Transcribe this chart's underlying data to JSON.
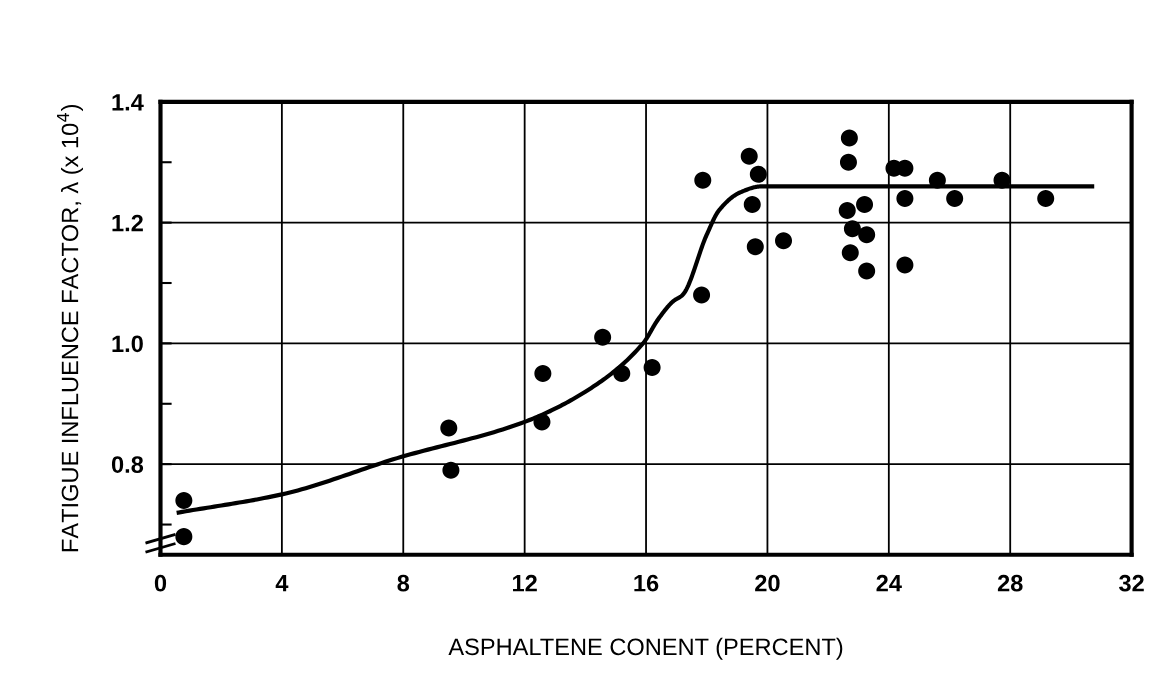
{
  "chart_data": {
    "type": "scatter",
    "xlabel": "ASPHALTENE CONENT (PERCENT)",
    "ylabel": "FATIGUE INFLUENCE FACTOR, λ (x 10$^{4}$)",
    "xlim": [
      0,
      32
    ],
    "ylim": [
      0.65,
      1.4
    ],
    "xticks": [
      0,
      4,
      8,
      12,
      16,
      20,
      24,
      28,
      32
    ],
    "yticks": [
      {
        "value": 0.7,
        "label": null
      },
      0.8,
      {
        "value": 0.9,
        "label": null
      },
      {
        "value": 1.0,
        "label": "1.0"
      },
      {
        "value": 1.1,
        "label": null
      },
      1.2,
      {
        "value": 1.3,
        "label": null
      },
      1.4
    ],
    "grid": true,
    "marker": "circle",
    "series": [
      {
        "color": "#000000",
        "x": [
          0.77,
          0.77,
          9.5,
          9.57,
          12.6,
          12.57,
          14.57,
          15.2,
          16.2,
          17.87,
          17.83,
          19.4,
          19.7,
          19.5,
          19.6,
          20.53,
          22.7,
          22.67,
          22.63,
          22.8,
          23.27,
          23.2,
          22.73,
          23.27,
          24.17,
          24.53,
          24.53,
          24.53,
          25.6,
          26.17,
          27.73,
          29.17
        ],
        "values": [
          0.74,
          0.68,
          0.86,
          0.79,
          0.95,
          0.87,
          1.01,
          0.95,
          0.96,
          1.27,
          1.08,
          1.31,
          1.28,
          1.23,
          1.16,
          1.17,
          1.34,
          1.3,
          1.22,
          1.19,
          1.18,
          1.23,
          1.15,
          1.12,
          1.29,
          1.29,
          1.24,
          1.13,
          1.27,
          1.24,
          1.27,
          1.24
        ]
      },
      {
        "type": "line",
        "color": "#000000",
        "marker": "none",
        "line_style": "solid",
        "x": [
          0.6,
          4,
          7.8,
          12,
          14,
          15.9,
          16.4,
          16.9,
          17.2,
          18.0,
          18.4,
          19.1,
          19.8,
          30.7
        ],
        "values": [
          0.72,
          0.75,
          0.81,
          0.87,
          0.92,
          1.0,
          1.04,
          1.07,
          1.08,
          1.18,
          1.22,
          1.25,
          1.26,
          1.26
        ]
      }
    ]
  }
}
